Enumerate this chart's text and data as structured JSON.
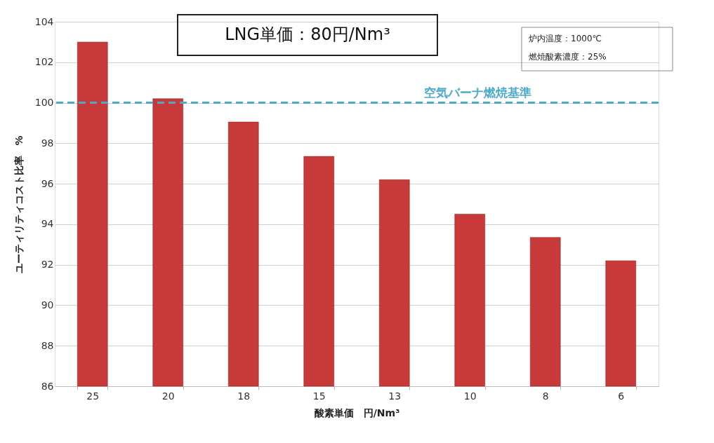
{
  "chart_data": {
    "type": "bar",
    "title": "LNG単価：80円/Nm³",
    "xlabel": "酸素単価　円/Nm³",
    "ylabel": "ユーティリティコスト比率　%",
    "categories": [
      "25",
      "20",
      "18",
      "15",
      "13",
      "10",
      "8",
      "6"
    ],
    "values": [
      103.0,
      100.2,
      99.05,
      97.35,
      96.2,
      94.5,
      93.35,
      92.2
    ],
    "color": "#c83a3a",
    "ylim": [
      86,
      104
    ],
    "yticks": [
      86,
      88,
      90,
      92,
      94,
      96,
      98,
      100,
      102,
      104
    ],
    "grid": "y",
    "ref_lines": [
      {
        "axis": "y",
        "value": 100,
        "label": "空気バーナ燃焼基準",
        "color": "#4aaac8",
        "line_style": "dashed"
      }
    ],
    "annotations": [
      "炉内温度：1000℃",
      "燃焼酸素濃度：25%"
    ]
  }
}
